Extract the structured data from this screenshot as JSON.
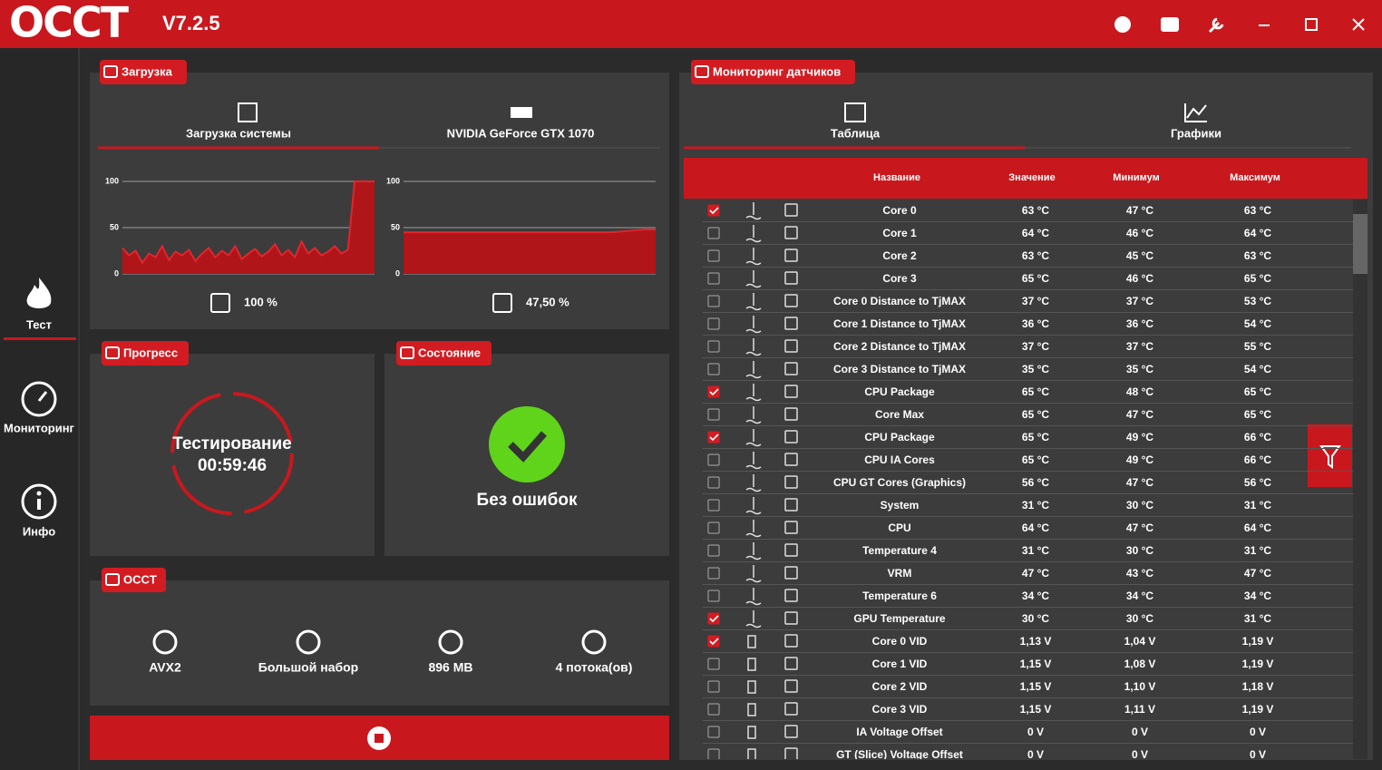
{
  "header": {
    "logo": "OCCT",
    "version": "V7.2.5"
  },
  "sidebar": [
    "Тест",
    "Мониторинг",
    "Инфо"
  ],
  "load": {
    "title": "Загрузка",
    "tabs": [
      "Загрузка системы",
      "NVIDIA GeForce GTX 1070"
    ],
    "charts": [
      {
        "ylim": [
          0,
          100
        ],
        "yticks": [
          100,
          50,
          0
        ],
        "readout": "100 %",
        "values": [
          28,
          20,
          25,
          12,
          22,
          18,
          30,
          15,
          24,
          20,
          26,
          14,
          22,
          28,
          18,
          25,
          20,
          30,
          16,
          22,
          27,
          19,
          24,
          32,
          20,
          26,
          18,
          35,
          22,
          28,
          20,
          24,
          30,
          22,
          26,
          100,
          100,
          100,
          100
        ]
      },
      {
        "ylim": [
          0,
          100
        ],
        "yticks": [
          100,
          50,
          0
        ],
        "readout": "47,50 %",
        "values": [
          45,
          45,
          45,
          45,
          45,
          45,
          45,
          45,
          45,
          45,
          45,
          45,
          45,
          45,
          45,
          45,
          45,
          45,
          45,
          45,
          46,
          47,
          48,
          48
        ]
      }
    ]
  },
  "progress": {
    "title": "Прогресс",
    "status": "Тестирование",
    "time": "00:59:46"
  },
  "state": {
    "title": "Состояние",
    "message": "Без ошибок"
  },
  "occt": {
    "title": "OCCT",
    "items": [
      "AVX2",
      "Большой набор",
      "896 MB",
      "4 потока(ов)"
    ]
  },
  "monitoring": {
    "title": "Мониторинг датчиков",
    "tabs": [
      "Таблица",
      "Графики"
    ],
    "columns": [
      "Название",
      "Значение",
      "Минимум",
      "Максимум"
    ],
    "rows": [
      [
        "Core 0",
        "63 °C",
        "47 °C",
        "63 °C"
      ],
      [
        "Core 1",
        "64 °C",
        "46 °C",
        "64 °C"
      ],
      [
        "Core 2",
        "63 °C",
        "45 °C",
        "63 °C"
      ],
      [
        "Core 3",
        "65 °C",
        "46 °C",
        "65 °C"
      ],
      [
        "Core 0 Distance to TjMAX",
        "37 °C",
        "37 °C",
        "53 °C"
      ],
      [
        "Core 1 Distance to TjMAX",
        "36 °C",
        "36 °C",
        "54 °C"
      ],
      [
        "Core 2 Distance to TjMAX",
        "37 °C",
        "37 °C",
        "55 °C"
      ],
      [
        "Core 3 Distance to TjMAX",
        "35 °C",
        "35 °C",
        "54 °C"
      ],
      [
        "CPU Package",
        "65 °C",
        "48 °C",
        "65 °C"
      ],
      [
        "Core Max",
        "65 °C",
        "47 °C",
        "65 °C"
      ],
      [
        "CPU Package",
        "65 °C",
        "49 °C",
        "66 °C"
      ],
      [
        "CPU IA Cores",
        "65 °C",
        "49 °C",
        "66 °C"
      ],
      [
        "CPU GT Cores (Graphics)",
        "56 °C",
        "47 °C",
        "56 °C"
      ],
      [
        "System",
        "31 °C",
        "30 °C",
        "31 °C"
      ],
      [
        "CPU",
        "64 °C",
        "47 °C",
        "64 °C"
      ],
      [
        "Temperature 4",
        "31 °C",
        "30 °C",
        "31 °C"
      ],
      [
        "VRM",
        "47 °C",
        "43 °C",
        "47 °C"
      ],
      [
        "Temperature 6",
        "34 °C",
        "34 °C",
        "34 °C"
      ],
      [
        "GPU Temperature",
        "30 °C",
        "30 °C",
        "31 °C"
      ],
      [
        "Core 0 VID",
        "1,13 V",
        "1,04 V",
        "1,19 V"
      ],
      [
        "Core 1 VID",
        "1,15 V",
        "1,08 V",
        "1,19 V"
      ],
      [
        "Core 2 VID",
        "1,15 V",
        "1,10 V",
        "1,18 V"
      ],
      [
        "Core 3 VID",
        "1,15 V",
        "1,11 V",
        "1,19 V"
      ],
      [
        "IA Voltage Offset",
        "0 V",
        "0 V",
        "0 V"
      ],
      [
        "GT (Slice) Voltage Offset",
        "0 V",
        "0 V",
        "0 V"
      ]
    ],
    "checked": [
      true,
      false,
      false,
      false,
      false,
      false,
      false,
      false,
      true,
      false,
      true,
      false,
      false,
      false,
      false,
      false,
      false,
      false,
      true,
      true,
      false,
      false,
      false,
      false,
      false
    ]
  }
}
